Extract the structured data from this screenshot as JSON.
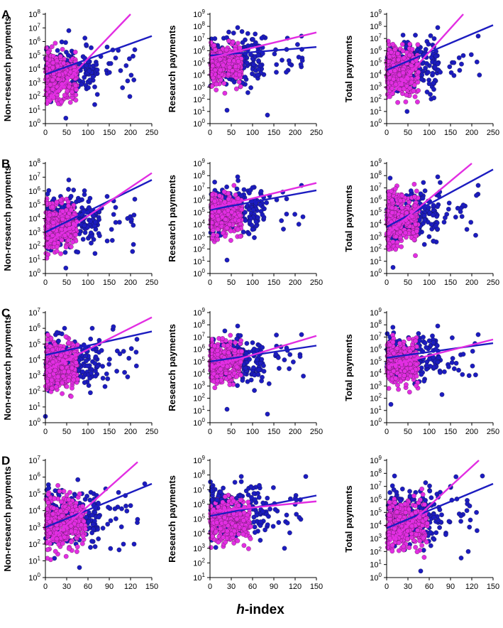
{
  "colors": {
    "male": "#1c1cc0",
    "female": "#e22ee2",
    "axis": "#000000"
  },
  "xlabel_italic": "h",
  "xlabel_rest": "-index",
  "chart_data": [
    {
      "row": "A",
      "type": "scatter",
      "ylabel": "Non-research payments",
      "xlim": [
        0,
        250
      ],
      "xticks": [
        0,
        50,
        100,
        150,
        200,
        250
      ],
      "ylim": [
        0,
        8
      ],
      "yticks": [
        0,
        1,
        2,
        3,
        4,
        5,
        6,
        7,
        8
      ],
      "trend": {
        "female": [
          [
            0,
            1.5
          ],
          [
            200,
            8.0
          ]
        ],
        "male": [
          [
            0,
            3.6
          ],
          [
            250,
            6.4
          ]
        ]
      },
      "profile": {
        "mlo": 0.7,
        "mhi": 6.3,
        "flo": 0.9,
        "fhi": 5.9,
        "fmax": 80,
        "mmax": 220
      },
      "outliers": [
        [
          48,
          0.4
        ],
        [
          55,
          6.8
        ],
        [
          145,
          5.6
        ],
        [
          165,
          4.8
        ],
        [
          210,
          5.4
        ]
      ]
    },
    {
      "row": "A",
      "type": "scatter",
      "ylabel": "Research payments",
      "xlim": [
        0,
        250
      ],
      "xticks": [
        0,
        50,
        100,
        150,
        200,
        250
      ],
      "ylim": [
        0,
        9
      ],
      "yticks": [
        0,
        1,
        2,
        3,
        4,
        5,
        6,
        7,
        8,
        9
      ],
      "trend": {
        "female": [
          [
            0,
            5.4
          ],
          [
            250,
            7.5
          ]
        ],
        "male": [
          [
            0,
            5.6
          ],
          [
            250,
            6.3
          ]
        ]
      },
      "profile": {
        "mlo": 2.0,
        "mhi": 7.8,
        "flo": 2.5,
        "fhi": 7.2,
        "fmax": 80,
        "mmax": 220
      },
      "outliers": [
        [
          135,
          0.7
        ],
        [
          40,
          1.1
        ],
        [
          215,
          7.2
        ],
        [
          65,
          7.9
        ],
        [
          180,
          6.1
        ]
      ]
    },
    {
      "row": "A",
      "type": "scatter",
      "ylabel": "Total payments",
      "xlim": [
        0,
        250
      ],
      "xticks": [
        0,
        50,
        100,
        150,
        200,
        250
      ],
      "ylim": [
        0,
        9
      ],
      "yticks": [
        0,
        1,
        2,
        3,
        4,
        5,
        6,
        7,
        8,
        9
      ],
      "trend": {
        "female": [
          [
            0,
            2.0
          ],
          [
            180,
            9.0
          ]
        ],
        "male": [
          [
            0,
            4.4
          ],
          [
            250,
            8.1
          ]
        ]
      },
      "profile": {
        "mlo": 1.3,
        "mhi": 7.8,
        "flo": 1.4,
        "fhi": 7.3,
        "fmax": 80,
        "mmax": 220
      },
      "outliers": [
        [
          48,
          1.0
        ],
        [
          215,
          7.2
        ],
        [
          120,
          7.9
        ],
        [
          180,
          5.6
        ],
        [
          95,
          2.6
        ]
      ]
    },
    {
      "row": "B",
      "type": "scatter",
      "ylabel": "Non-research payments",
      "xlim": [
        0,
        250
      ],
      "xticks": [
        0,
        50,
        100,
        150,
        200,
        250
      ],
      "ylim": [
        0,
        8
      ],
      "yticks": [
        0,
        1,
        2,
        3,
        4,
        5,
        6,
        7,
        8
      ],
      "trend": {
        "female": [
          [
            0,
            2.1
          ],
          [
            250,
            7.3
          ]
        ],
        "male": [
          [
            0,
            3.0
          ],
          [
            250,
            6.8
          ]
        ]
      },
      "profile": {
        "mlo": 0.7,
        "mhi": 6.3,
        "flo": 0.9,
        "fhi": 5.9,
        "fmax": 80,
        "mmax": 220
      },
      "outliers": [
        [
          48,
          0.4
        ],
        [
          55,
          6.8
        ],
        [
          145,
          5.6
        ],
        [
          165,
          4.8
        ],
        [
          210,
          5.4
        ]
      ]
    },
    {
      "row": "B",
      "type": "scatter",
      "ylabel": "Research payments",
      "xlim": [
        0,
        250
      ],
      "xticks": [
        0,
        50,
        100,
        150,
        200,
        250
      ],
      "ylim": [
        0,
        9
      ],
      "yticks": [
        0,
        1,
        2,
        3,
        4,
        5,
        6,
        7,
        8,
        9
      ],
      "trend": {
        "female": [
          [
            0,
            5.3
          ],
          [
            250,
            7.4
          ]
        ],
        "male": [
          [
            0,
            5.2
          ],
          [
            250,
            6.8
          ]
        ]
      },
      "profile": {
        "mlo": 2.0,
        "mhi": 7.8,
        "flo": 2.5,
        "fhi": 7.2,
        "fmax": 80,
        "mmax": 220
      },
      "outliers": [
        [
          40,
          1.1
        ],
        [
          215,
          7.2
        ],
        [
          65,
          7.9
        ],
        [
          180,
          6.1
        ],
        [
          100,
          3.6
        ]
      ]
    },
    {
      "row": "B",
      "type": "scatter",
      "ylabel": "Total payments",
      "xlim": [
        0,
        250
      ],
      "xticks": [
        0,
        50,
        100,
        150,
        200,
        250
      ],
      "ylim": [
        0,
        9
      ],
      "yticks": [
        0,
        1,
        2,
        3,
        4,
        5,
        6,
        7,
        8,
        9
      ],
      "trend": {
        "female": [
          [
            0,
            3.2
          ],
          [
            200,
            9.0
          ]
        ],
        "male": [
          [
            0,
            3.8
          ],
          [
            250,
            8.5
          ]
        ]
      },
      "profile": {
        "mlo": 1.3,
        "mhi": 7.8,
        "flo": 1.4,
        "fhi": 7.3,
        "fmax": 80,
        "mmax": 220
      },
      "outliers": [
        [
          15,
          0.5
        ],
        [
          215,
          7.2
        ],
        [
          120,
          7.9
        ],
        [
          180,
          5.6
        ],
        [
          135,
          4.2
        ]
      ]
    },
    {
      "row": "C",
      "type": "scatter",
      "ylabel": "Non-research payments",
      "xlim": [
        0,
        250
      ],
      "xticks": [
        0,
        50,
        100,
        150,
        200,
        250
      ],
      "ylim": [
        0,
        7
      ],
      "yticks": [
        0,
        1,
        2,
        3,
        4,
        5,
        6,
        7
      ],
      "trend": {
        "female": [
          [
            0,
            3.3
          ],
          [
            250,
            6.7
          ]
        ],
        "male": [
          [
            0,
            4.3
          ],
          [
            250,
            5.8
          ]
        ]
      },
      "profile": {
        "mlo": 1.2,
        "mhi": 6.1,
        "flo": 1.3,
        "fhi": 5.8,
        "fmax": 80,
        "mmax": 220
      },
      "outliers": [
        [
          0,
          0.4
        ],
        [
          45,
          6.0
        ],
        [
          110,
          6.0
        ],
        [
          140,
          2.3
        ],
        [
          215,
          5.3
        ]
      ]
    },
    {
      "row": "C",
      "type": "scatter",
      "ylabel": "Research payments",
      "xlim": [
        0,
        250
      ],
      "xticks": [
        0,
        50,
        100,
        150,
        200,
        250
      ],
      "ylim": [
        0,
        9
      ],
      "yticks": [
        0,
        1,
        2,
        3,
        4,
        5,
        6,
        7,
        8,
        9
      ],
      "trend": {
        "female": [
          [
            0,
            4.5
          ],
          [
            250,
            7.1
          ]
        ],
        "male": [
          [
            0,
            5.0
          ],
          [
            250,
            6.3
          ]
        ]
      },
      "profile": {
        "mlo": 2.0,
        "mhi": 7.8,
        "flo": 2.5,
        "fhi": 7.2,
        "fmax": 80,
        "mmax": 220
      },
      "outliers": [
        [
          135,
          0.7
        ],
        [
          40,
          1.1
        ],
        [
          215,
          7.2
        ],
        [
          65,
          7.9
        ],
        [
          180,
          6.1
        ]
      ]
    },
    {
      "row": "C",
      "type": "scatter",
      "ylabel": "Total payments",
      "xlim": [
        0,
        250
      ],
      "xticks": [
        0,
        50,
        100,
        150,
        200,
        250
      ],
      "ylim": [
        0,
        9
      ],
      "yticks": [
        0,
        1,
        2,
        3,
        4,
        5,
        6,
        7,
        8,
        9
      ],
      "trend": {
        "female": [
          [
            0,
            4.6
          ],
          [
            250,
            6.8
          ]
        ],
        "male": [
          [
            0,
            5.3
          ],
          [
            250,
            6.5
          ]
        ]
      },
      "profile": {
        "mlo": 2.3,
        "mhi": 7.8,
        "flo": 2.5,
        "fhi": 7.3,
        "fmax": 80,
        "mmax": 220
      },
      "outliers": [
        [
          10,
          1.5
        ],
        [
          215,
          7.2
        ],
        [
          120,
          7.9
        ],
        [
          130,
          2.3
        ],
        [
          180,
          5.6
        ]
      ]
    },
    {
      "row": "D",
      "type": "scatter",
      "ylabel": "Non-research payments",
      "xlim": [
        0,
        150
      ],
      "xticks": [
        0,
        30,
        60,
        90,
        120,
        150
      ],
      "ylim": [
        0,
        7
      ],
      "yticks": [
        0,
        1,
        2,
        3,
        4,
        5,
        6,
        7
      ],
      "trend": {
        "female": [
          [
            0,
            2.0
          ],
          [
            130,
            6.9
          ]
        ],
        "male": [
          [
            0,
            3.0
          ],
          [
            150,
            5.6
          ]
        ]
      },
      "profile": {
        "mlo": 1.0,
        "mhi": 5.9,
        "flo": 1.0,
        "fhi": 5.5,
        "fmax": 60,
        "mmax": 130
      },
      "outliers": [
        [
          48,
          0.6
        ],
        [
          110,
          2.0
        ],
        [
          125,
          2.0
        ],
        [
          140,
          5.6
        ],
        [
          85,
          5.3
        ]
      ]
    },
    {
      "row": "D",
      "type": "scatter",
      "ylabel": "Research payments",
      "xlim": [
        0,
        150
      ],
      "xticks": [
        0,
        30,
        60,
        90,
        120,
        150
      ],
      "ylim": [
        1,
        9
      ],
      "yticks": [
        1,
        2,
        3,
        4,
        5,
        6,
        7,
        8,
        9
      ],
      "trend": {
        "female": [
          [
            0,
            5.5
          ],
          [
            150,
            6.2
          ]
        ],
        "male": [
          [
            0,
            5.2
          ],
          [
            150,
            6.6
          ]
        ]
      },
      "profile": {
        "mlo": 2.5,
        "mhi": 7.9,
        "flo": 2.8,
        "fhi": 6.8,
        "fmax": 60,
        "mmax": 130
      },
      "outliers": [
        [
          10,
          6.3
        ],
        [
          105,
          3.0
        ],
        [
          135,
          7.9
        ],
        [
          120,
          6.0
        ]
      ]
    },
    {
      "row": "D",
      "type": "scatter",
      "ylabel": "Total payments",
      "xlim": [
        0,
        150
      ],
      "xticks": [
        0,
        30,
        60,
        90,
        120,
        150
      ],
      "ylim": [
        0,
        9
      ],
      "yticks": [
        0,
        1,
        2,
        3,
        4,
        5,
        6,
        7,
        8,
        9
      ],
      "trend": {
        "female": [
          [
            0,
            2.5
          ],
          [
            130,
            9.0
          ]
        ],
        "male": [
          [
            0,
            3.8
          ],
          [
            150,
            7.2
          ]
        ]
      },
      "profile": {
        "mlo": 1.0,
        "mhi": 7.8,
        "flo": 1.3,
        "fhi": 6.8,
        "fmax": 60,
        "mmax": 130
      },
      "outliers": [
        [
          48,
          0.5
        ],
        [
          105,
          1.5
        ],
        [
          115,
          2.0
        ],
        [
          135,
          7.8
        ],
        [
          90,
          7.0
        ]
      ]
    }
  ]
}
